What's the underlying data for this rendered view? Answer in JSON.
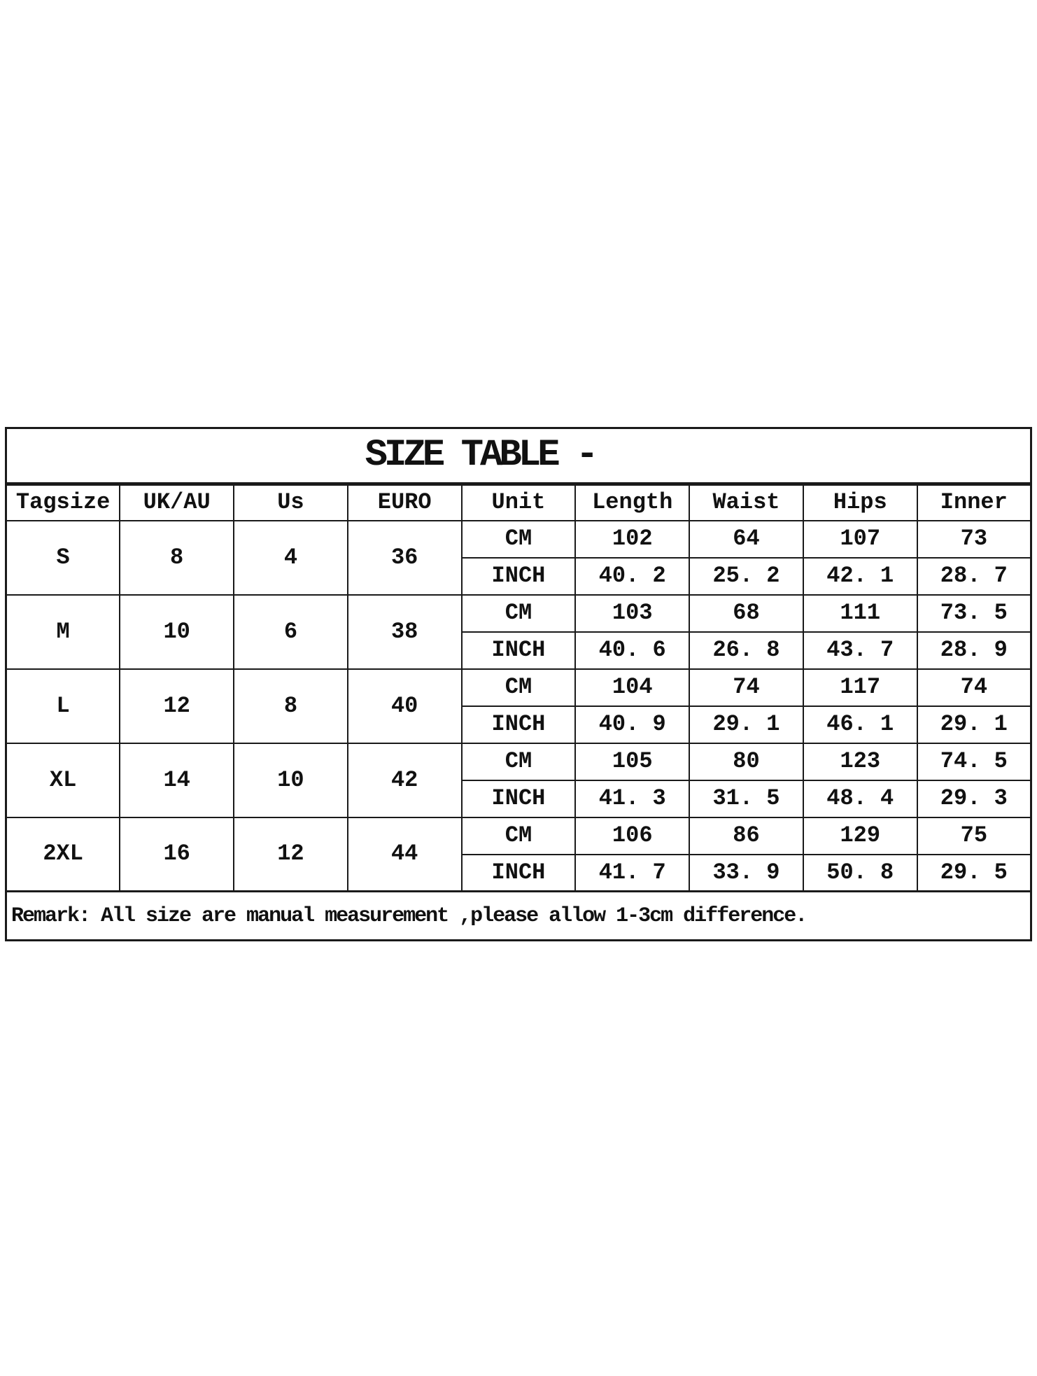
{
  "title": "SIZE TABLE -",
  "table": {
    "headers": [
      "Tagsize",
      "UK/AU",
      "Us",
      "EURO",
      "Unit",
      "Length",
      "Waist",
      "Hips",
      "Inner"
    ],
    "unit_labels": {
      "cm": "CM",
      "inch": "INCH"
    },
    "rows": [
      {
        "tagsize": "S",
        "uk_au": "8",
        "us": "4",
        "euro": "36",
        "cm": {
          "length": "102",
          "waist": "64",
          "hips": "107",
          "inner": "73"
        },
        "inch": {
          "length": "40. 2",
          "waist": "25. 2",
          "hips": "42. 1",
          "inner": "28. 7"
        }
      },
      {
        "tagsize": "M",
        "uk_au": "10",
        "us": "6",
        "euro": "38",
        "cm": {
          "length": "103",
          "waist": "68",
          "hips": "111",
          "inner": "73. 5"
        },
        "inch": {
          "length": "40. 6",
          "waist": "26. 8",
          "hips": "43. 7",
          "inner": "28. 9"
        }
      },
      {
        "tagsize": "L",
        "uk_au": "12",
        "us": "8",
        "euro": "40",
        "cm": {
          "length": "104",
          "waist": "74",
          "hips": "117",
          "inner": "74"
        },
        "inch": {
          "length": "40. 9",
          "waist": "29. 1",
          "hips": "46. 1",
          "inner": "29. 1"
        }
      },
      {
        "tagsize": "XL",
        "uk_au": "14",
        "us": "10",
        "euro": "42",
        "cm": {
          "length": "105",
          "waist": "80",
          "hips": "123",
          "inner": "74. 5"
        },
        "inch": {
          "length": "41. 3",
          "waist": "31. 5",
          "hips": "48. 4",
          "inner": "29. 3"
        }
      },
      {
        "tagsize": "2XL",
        "uk_au": "16",
        "us": "12",
        "euro": "44",
        "cm": {
          "length": "106",
          "waist": "86",
          "hips": "129",
          "inner": "75"
        },
        "inch": {
          "length": "41. 7",
          "waist": "33. 9",
          "hips": "50. 8",
          "inner": "29. 5"
        }
      }
    ]
  },
  "remark": "Remark: All size are manual measurement ,please allow 1-3cm difference.",
  "colors": {
    "text": "#111111",
    "border": "#1a1a1a",
    "background": "#ffffff"
  }
}
